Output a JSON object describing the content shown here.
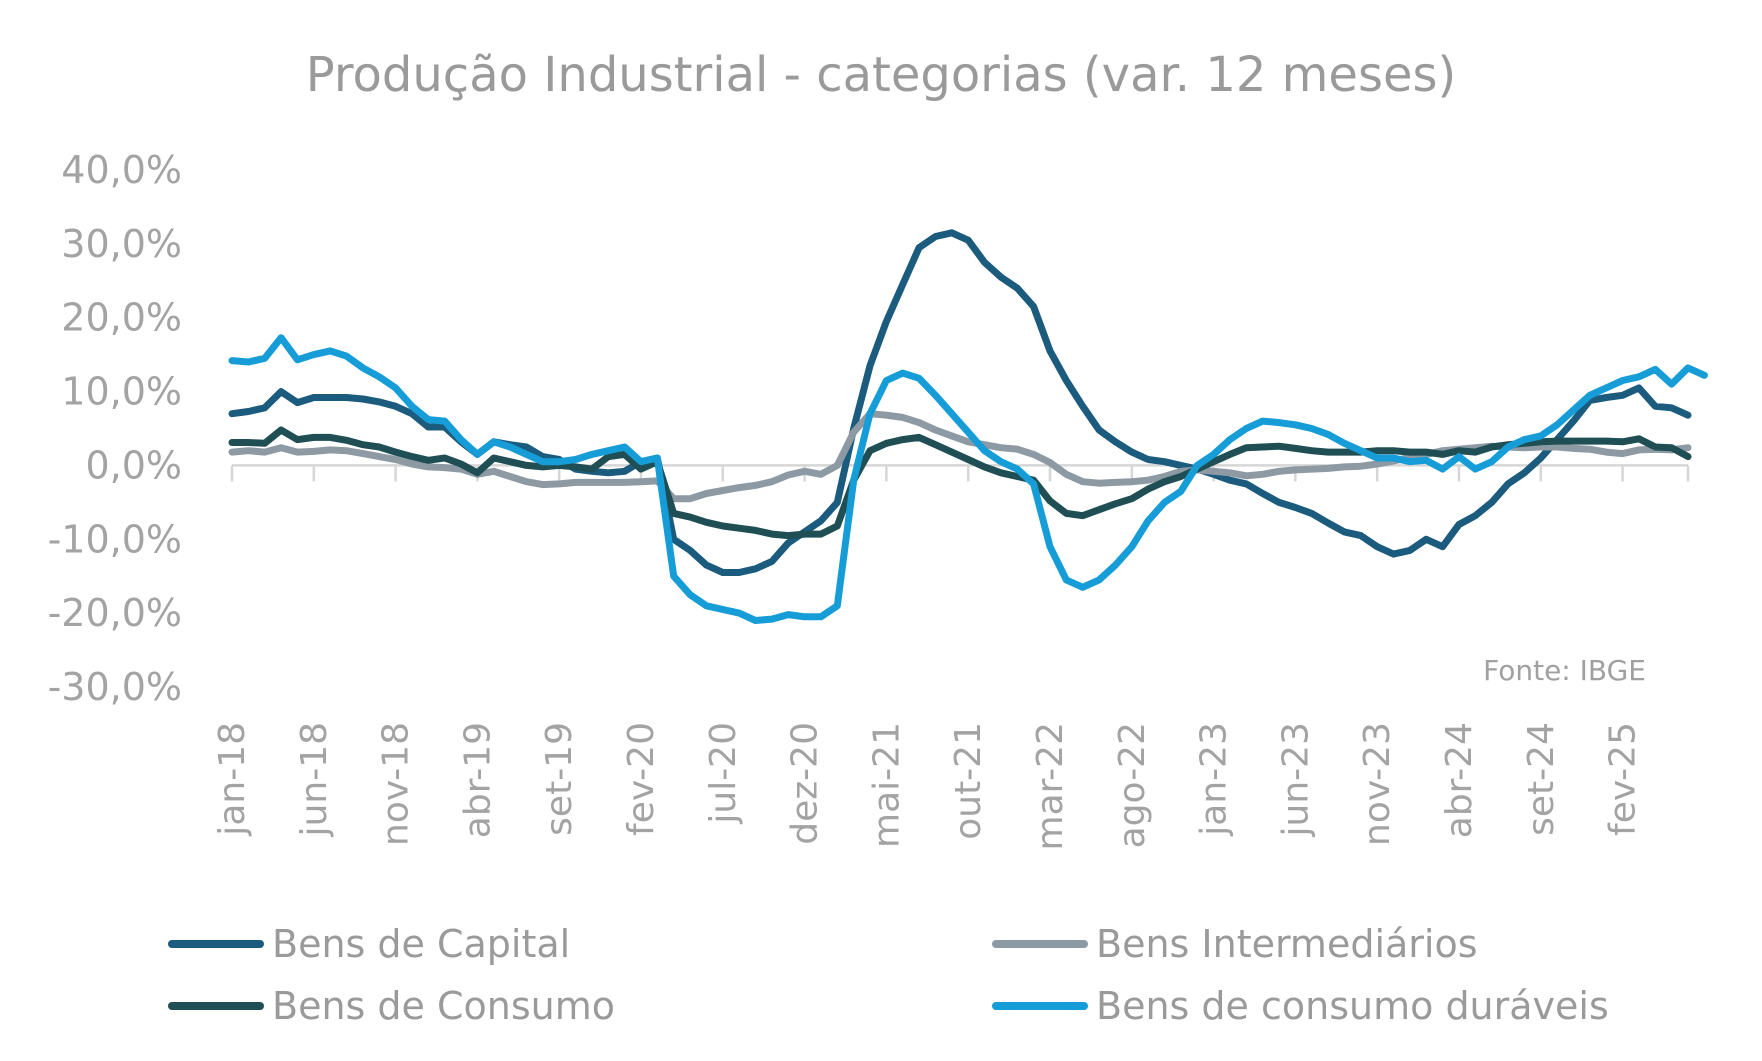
{
  "chart_data": {
    "type": "line",
    "title": "Produção Industrial - categorias (var. 12 meses)",
    "source_note": "Fonte: IBGE",
    "ylim": [
      -30,
      40
    ],
    "y_ticks": [
      40,
      30,
      20,
      10,
      0,
      -10,
      -20,
      -30
    ],
    "y_tick_labels": [
      "40,0%",
      "30,0%",
      "20,0%",
      "10,0%",
      "0,0%",
      "-10,0%",
      "-20,0%",
      "-30,0%"
    ],
    "x_tick_labels": [
      "jan-18",
      "jun-18",
      "nov-18",
      "abr-19",
      "set-19",
      "fev-20",
      "jul-20",
      "dez-20",
      "mai-21",
      "out-21",
      "mar-22",
      "ago-22",
      "jan-23",
      "jun-23",
      "nov-23",
      "abr-24",
      "set-24",
      "fev-25"
    ],
    "x_tick_indices": [
      0,
      5,
      10,
      15,
      20,
      25,
      30,
      35,
      40,
      45,
      50,
      55,
      60,
      65,
      70,
      75,
      80,
      85
    ],
    "x_start": "jan-18",
    "x_end": "jul-25",
    "grid": false,
    "legend_position": "bottom",
    "series": [
      {
        "name": "Bens de Capital",
        "color": "#1b5b7d",
        "values": [
          7,
          7.3,
          7.8,
          10,
          8.5,
          9.2,
          9.2,
          9.2,
          9,
          8.6,
          8,
          7,
          5.2,
          5.2,
          3.2,
          1.5,
          3.2,
          2.8,
          2.5,
          1.2,
          0.8,
          -0.5,
          -0.8,
          -1,
          -0.8,
          0.5,
          1,
          -10,
          -11.5,
          -13.5,
          -14.5,
          -14.5,
          -14,
          -13,
          -10.5,
          -9,
          -7.5,
          -5,
          5,
          13.5,
          19.5,
          24.5,
          29.5,
          31,
          31.5,
          30.5,
          27.5,
          25.5,
          24,
          21.5,
          15.5,
          11.5,
          8,
          4.8,
          3.2,
          1.8,
          0.8,
          0.5,
          0,
          -0.5,
          -1.2,
          -2,
          -2.5,
          -3.8,
          -5,
          -5.7,
          -6.5,
          -7.8,
          -9,
          -9.5,
          -11,
          -12,
          -11.5,
          -10,
          -11,
          -8,
          -6.8,
          -5,
          -2.5,
          -1,
          1,
          3.5,
          6,
          8.8,
          9.2,
          9.5,
          10.5,
          8,
          7.8,
          6.8
        ]
      },
      {
        "name": "Bens Intermediários",
        "color": "#8d9aa4",
        "values": [
          1.8,
          2,
          1.8,
          2.4,
          1.8,
          1.9,
          2.1,
          2,
          1.6,
          1.2,
          0.8,
          0.2,
          -0.2,
          -0.3,
          -0.5,
          -1.2,
          -0.8,
          -1.5,
          -2.2,
          -2.6,
          -2.5,
          -2.3,
          -2.3,
          -2.3,
          -2.3,
          -2.2,
          -2.1,
          -4.5,
          -4.5,
          -3.8,
          -3.4,
          -3,
          -2.7,
          -2.2,
          -1.3,
          -0.8,
          -1.2,
          0,
          4.5,
          7,
          6.8,
          6.5,
          5.8,
          4.8,
          4,
          3.2,
          2.8,
          2.4,
          2.2,
          1.5,
          0.4,
          -1.2,
          -2.2,
          -2.4,
          -2.3,
          -2.2,
          -2,
          -1.5,
          -0.8,
          -0.6,
          -0.8,
          -1,
          -1.4,
          -1.2,
          -0.8,
          -0.6,
          -0.5,
          -0.4,
          -0.2,
          -0.1,
          0.2,
          0.6,
          1.1,
          1.5,
          2,
          2.2,
          2.4,
          2.6,
          2.5,
          2.4,
          2.5,
          2.5,
          2.3,
          2.2,
          1.8,
          1.6,
          2.1,
          2.2,
          2.1,
          2.4
        ]
      },
      {
        "name": "Bens de Consumo",
        "color": "#1f4f54",
        "values": [
          3.1,
          3.1,
          3,
          4.8,
          3.5,
          3.8,
          3.8,
          3.4,
          2.8,
          2.5,
          1.8,
          1.2,
          0.7,
          1,
          0.2,
          -1,
          1,
          0.5,
          0,
          -0.2,
          0,
          -0.2,
          -0.5,
          1.2,
          1.5,
          -0.5,
          0.5,
          -6.5,
          -7,
          -7.7,
          -8.2,
          -8.5,
          -8.8,
          -9.3,
          -9.5,
          -9.3,
          -9.3,
          -8.2,
          -2,
          2,
          3,
          3.5,
          3.8,
          2.8,
          1.8,
          0.8,
          -0.2,
          -1,
          -1.5,
          -2,
          -4.8,
          -6.5,
          -6.8,
          -6,
          -5.2,
          -4.5,
          -3.2,
          -2.2,
          -1.5,
          -0.5,
          0.5,
          1.5,
          2.4,
          2.5,
          2.6,
          2.3,
          2,
          1.8,
          1.8,
          1.8,
          2,
          2,
          1.8,
          1.8,
          1.5,
          2,
          1.8,
          2.5,
          2.8,
          3,
          3.2,
          3.3,
          3.3,
          3.3,
          3.3,
          3.2,
          3.6,
          2.5,
          2.4,
          1.2
        ]
      },
      {
        "name": "Bens de consumo duráveis",
        "color": "#169dd8",
        "values": [
          14.2,
          14,
          14.5,
          17.3,
          14.3,
          15,
          15.5,
          14.8,
          13.2,
          12,
          10.5,
          8,
          6.2,
          6,
          3.5,
          1.5,
          3.2,
          2.5,
          1.5,
          0.5,
          0.5,
          0.8,
          1.5,
          2,
          2.5,
          0.5,
          1,
          -15,
          -17.5,
          -19,
          -19.5,
          -20,
          -21,
          -20.8,
          -20.2,
          -20.5,
          -20.5,
          -19,
          -2,
          7,
          11.5,
          12.5,
          11.8,
          9.5,
          7,
          4.5,
          2,
          0.5,
          -0.5,
          -2.5,
          -11,
          -15.5,
          -16.5,
          -15.5,
          -13.5,
          -11,
          -7.5,
          -5,
          -3.5,
          0,
          1.5,
          3.5,
          5,
          6,
          5.8,
          5.5,
          5,
          4.2,
          3,
          2,
          1,
          1,
          0.5,
          0.7,
          -0.5,
          1.2,
          -0.5,
          0.5,
          2.5,
          3.5,
          4,
          5.5,
          7.5,
          9.5,
          10.5,
          11.5,
          12,
          13,
          11,
          13.2,
          12.2
        ]
      }
    ]
  }
}
